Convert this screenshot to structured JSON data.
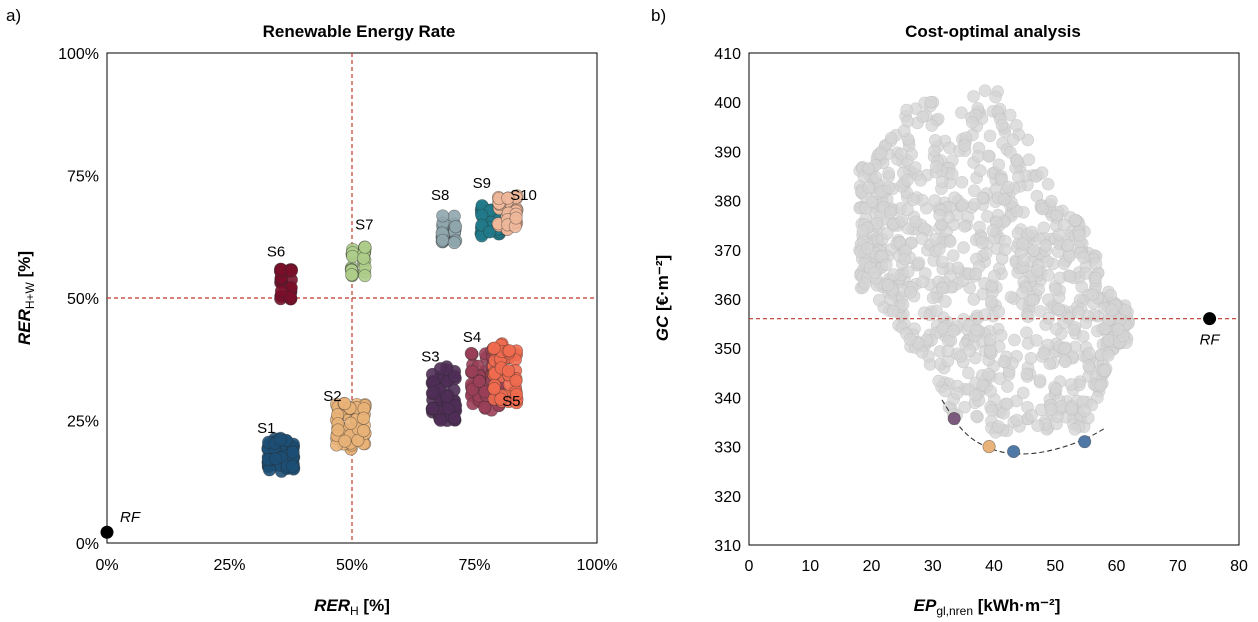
{
  "chart_data": [
    {
      "type": "scatter",
      "panel_label": "a)",
      "title": "Renewable Energy Rate",
      "xlabel_main": "RER",
      "xlabel_sub": "H",
      "xlabel_unit": " [%]",
      "ylabel_main": "RER",
      "ylabel_sub": "H+W",
      "ylabel_unit": " [%]",
      "xlim": [
        0,
        100
      ],
      "ylim": [
        0,
        100
      ],
      "xticks": [
        0,
        25,
        50,
        75,
        100
      ],
      "yticks": [
        0,
        25,
        50,
        75,
        100
      ],
      "xtick_labels": [
        "0%",
        "25%",
        "50%",
        "75%",
        "100%"
      ],
      "ytick_labels": [
        "0%",
        "25%",
        "50%",
        "75%",
        "100%"
      ],
      "reference_lines": {
        "x": 50,
        "y": 50,
        "color": "#c0392b",
        "style": "dashed"
      },
      "reference_point": {
        "label": "RF",
        "x": 0,
        "y": 2.2,
        "color": "#000000"
      },
      "grid": false,
      "series": [
        {
          "name": "S1",
          "color": "#1d4f75",
          "x_range": [
            33,
            38
          ],
          "y_range": [
            14.5,
            21.5
          ],
          "label_at": [
            32.5,
            22.5
          ]
        },
        {
          "name": "S2",
          "color": "#e9b278",
          "x_range": [
            47,
            52.5
          ],
          "y_range": [
            19,
            28.5
          ],
          "label_at": [
            46,
            29
          ]
        },
        {
          "name": "S3",
          "color": "#4f2d57",
          "x_range": [
            66.5,
            71
          ],
          "y_range": [
            25,
            36
          ],
          "label_at": [
            66,
            37
          ]
        },
        {
          "name": "S4",
          "color": "#9a3f58",
          "x_range": [
            74.5,
            80
          ],
          "y_range": [
            27,
            39.5
          ],
          "label_at": [
            74.5,
            41
          ]
        },
        {
          "name": "S5",
          "color": "#f06a4f",
          "x_range": [
            79,
            83.5
          ],
          "y_range": [
            28.5,
            41
          ],
          "label_at": [
            82.5,
            28
          ]
        },
        {
          "name": "S6",
          "color": "#7a0f2a",
          "x_range": [
            35.5,
            37.5
          ],
          "y_range": [
            49.5,
            56
          ],
          "label_at": [
            34.5,
            58.5
          ]
        },
        {
          "name": "S7",
          "color": "#aecd8a",
          "x_range": [
            50,
            52.5
          ],
          "y_range": [
            54.5,
            60.5
          ],
          "label_at": [
            52.5,
            64
          ]
        },
        {
          "name": "S8",
          "color": "#8fa6ad",
          "x_range": [
            68.5,
            71
          ],
          "y_range": [
            61,
            67
          ],
          "label_at": [
            68,
            70
          ]
        },
        {
          "name": "S9",
          "color": "#207a8a",
          "x_range": [
            76.5,
            80
          ],
          "y_range": [
            62.5,
            69
          ],
          "label_at": [
            76.5,
            72.5
          ]
        },
        {
          "name": "S10",
          "color": "#f0b89a",
          "x_range": [
            80,
            83.5
          ],
          "y_range": [
            64,
            71
          ],
          "label_at": [
            85,
            70
          ]
        }
      ]
    },
    {
      "type": "scatter",
      "panel_label": "b)",
      "title": "Cost-optimal analysis",
      "xlabel_main": "EP",
      "xlabel_sub": "gl,nren",
      "xlabel_unit": " [kWh·m⁻²]",
      "ylabel_main": "GC",
      "ylabel_unit": " [€·m⁻²]",
      "xlim": [
        0,
        80
      ],
      "ylim": [
        310,
        410
      ],
      "xticks": [
        0,
        10,
        20,
        30,
        40,
        50,
        60,
        70,
        80
      ],
      "yticks": [
        310,
        320,
        330,
        340,
        350,
        360,
        370,
        380,
        390,
        400,
        410
      ],
      "reference_lines": {
        "y": 356,
        "color": "#c0392b",
        "style": "dashed"
      },
      "reference_point": {
        "label": "RF",
        "x": 75.2,
        "y": 356,
        "color": "#000000"
      },
      "cloud_color": "#d4d4d4",
      "cloud_envelope": [
        {
          "x": 20,
          "y_range": [
            362,
            387
          ]
        },
        {
          "x": 25,
          "y_range": [
            352,
            398
          ]
        },
        {
          "x": 30,
          "y_range": [
            345,
            401
          ]
        },
        {
          "x": 33,
          "y_range": [
            336,
            394
          ]
        },
        {
          "x": 36,
          "y_range": [
            336,
            401
          ]
        },
        {
          "x": 40,
          "y_range": [
            332,
            404
          ]
        },
        {
          "x": 45,
          "y_range": [
            334,
            395
          ]
        },
        {
          "x": 50,
          "y_range": [
            333,
            380
          ]
        },
        {
          "x": 55,
          "y_range": [
            333,
            375
          ]
        },
        {
          "x": 60,
          "y_range": [
            351,
            359
          ]
        }
      ],
      "pareto_points": [
        {
          "x": 33.5,
          "y": 335.7,
          "color": "#7b5a7d"
        },
        {
          "x": 39.2,
          "y": 330.0,
          "color": "#e9b278"
        },
        {
          "x": 43.2,
          "y": 329.0,
          "color": "#4f78a6"
        },
        {
          "x": 54.8,
          "y": 331.0,
          "color": "#4f78a6"
        }
      ],
      "pareto_front": {
        "style": "dashed",
        "color": "#333333",
        "points": [
          [
            31.5,
            339.5
          ],
          [
            35,
            332.5
          ],
          [
            40,
            329
          ],
          [
            45,
            328.3
          ],
          [
            50,
            329.3
          ],
          [
            55,
            331.5
          ],
          [
            58.2,
            333.8
          ]
        ]
      },
      "grid": false
    }
  ]
}
